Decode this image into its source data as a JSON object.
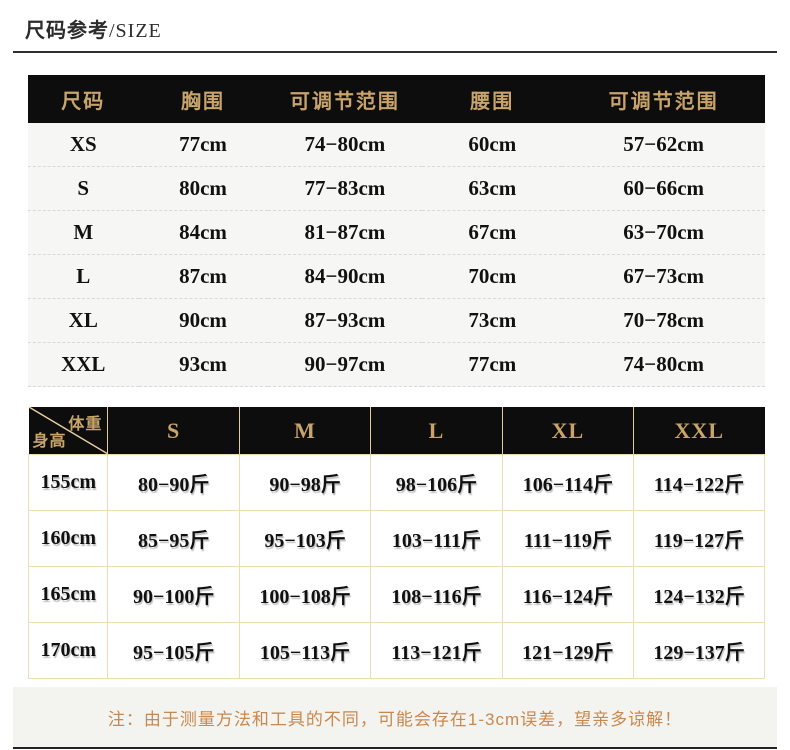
{
  "page": {
    "title_cn": "尺码参考",
    "title_en": "/SIZE"
  },
  "size_table": {
    "headers": [
      "尺码",
      "胸围",
      "可调节范围",
      "腰围",
      "可调节范围"
    ],
    "rows": [
      [
        "XS",
        "77cm",
        "74−80cm",
        "60cm",
        "57−62cm"
      ],
      [
        "S",
        "80cm",
        "77−83cm",
        "63cm",
        "60−66cm"
      ],
      [
        "M",
        "84cm",
        "81−87cm",
        "67cm",
        "63−70cm"
      ],
      [
        "L",
        "87cm",
        "84−90cm",
        "70cm",
        "67−73cm"
      ],
      [
        "XL",
        "90cm",
        "87−93cm",
        "73cm",
        "70−78cm"
      ],
      [
        "XXL",
        "93cm",
        "90−97cm",
        "77cm",
        "74−80cm"
      ]
    ]
  },
  "weight_table": {
    "corner_top": "体重",
    "corner_bottom": "身高",
    "headers": [
      "S",
      "M",
      "L",
      "XL",
      "XXL"
    ],
    "rows": [
      [
        "155cm",
        "80−90斤",
        "90−98斤",
        "98−106斤",
        "106−114斤",
        "114−122斤"
      ],
      [
        "160cm",
        "85−95斤",
        "95−103斤",
        "103−111斤",
        "111−119斤",
        "119−127斤"
      ],
      [
        "165cm",
        "90−100斤",
        "100−108斤",
        "108−116斤",
        "116−124斤",
        "124−132斤"
      ],
      [
        "170cm",
        "95−105斤",
        "105−113斤",
        "113−121斤",
        "121−129斤",
        "129−137斤"
      ]
    ]
  },
  "note": {
    "text": "注：由于测量方法和工具的不同，可能会存在1-3cm误差，望亲多谅解！"
  },
  "colors": {
    "header_bg": "#0d0d0d",
    "header_gold": "#c8a46b",
    "table_border_tan": "#eddcb3",
    "header_separator_tan": "#e3cb9d",
    "note_text": "#c9884f",
    "row_bg": "#f6f6f4",
    "rule_dark": "#2e2e2e"
  }
}
